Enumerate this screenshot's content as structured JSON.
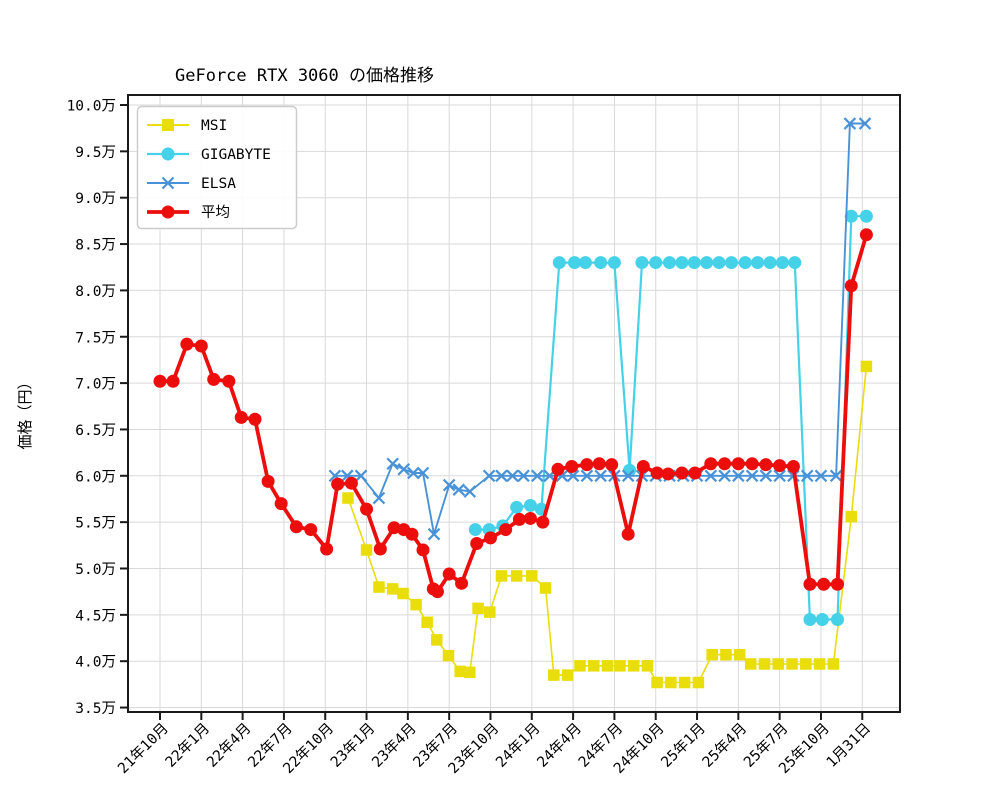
{
  "chart_data": {
    "type": "line",
    "title": "GeForce RTX 3060 の価格推移",
    "ylabel": "価格（円）",
    "unit_note": "万 = 10,000 yen",
    "grid": "on",
    "legend_position": "upper-left",
    "y_range": [
      3.5,
      10.0
    ],
    "y_ticks": [
      {
        "value": 10.0,
        "label": "10.0万"
      },
      {
        "value": 9.5,
        "label": "9.5万"
      },
      {
        "value": 9.0,
        "label": "9.0万"
      },
      {
        "value": 8.5,
        "label": "8.5万"
      },
      {
        "value": 8.0,
        "label": "8.0万"
      },
      {
        "value": 7.5,
        "label": "7.5万"
      },
      {
        "value": 7.0,
        "label": "7.0万"
      },
      {
        "value": 6.5,
        "label": "6.5万"
      },
      {
        "value": 6.0,
        "label": "6.0万"
      },
      {
        "value": 5.5,
        "label": "5.5万"
      },
      {
        "value": 5.0,
        "label": "5.0万"
      },
      {
        "value": 4.5,
        "label": "4.5万"
      },
      {
        "value": 4.0,
        "label": "4.0万"
      },
      {
        "value": 3.5,
        "label": "3.5万"
      }
    ],
    "x_axis_note": "x unit = months since 2021-10",
    "x_ticks": [
      {
        "m": 0,
        "label": "21年10月"
      },
      {
        "m": 3,
        "label": "22年1月"
      },
      {
        "m": 6,
        "label": "22年4月"
      },
      {
        "m": 9,
        "label": "22年7月"
      },
      {
        "m": 12,
        "label": "22年10月"
      },
      {
        "m": 15,
        "label": "23年1月"
      },
      {
        "m": 18,
        "label": "23年4月"
      },
      {
        "m": 21,
        "label": "23年7月"
      },
      {
        "m": 24,
        "label": "23年10月"
      },
      {
        "m": 27,
        "label": "24年1月"
      },
      {
        "m": 30,
        "label": "24年4月"
      },
      {
        "m": 33,
        "label": "24年7月"
      },
      {
        "m": 36,
        "label": "24年10月"
      },
      {
        "m": 39,
        "label": "25年1月"
      },
      {
        "m": 42,
        "label": "25年4月"
      },
      {
        "m": 45,
        "label": "25年7月"
      },
      {
        "m": 48,
        "label": "25年10月"
      },
      {
        "m": 51,
        "label": "1月31日"
      }
    ],
    "series": [
      {
        "name": "MSI",
        "color": "#e9dd0a",
        "marker": "square",
        "line_width": 1.6,
        "points": [
          [
            13.65,
            5.76
          ],
          [
            15.0,
            5.2
          ],
          [
            15.9,
            4.8
          ],
          [
            16.9,
            4.78
          ],
          [
            17.65,
            4.73
          ],
          [
            18.6,
            4.61
          ],
          [
            19.4,
            4.42
          ],
          [
            20.1,
            4.23
          ],
          [
            20.95,
            4.06
          ],
          [
            21.8,
            3.89
          ],
          [
            22.5,
            3.88
          ],
          [
            23.1,
            4.57
          ],
          [
            23.95,
            4.53
          ],
          [
            24.8,
            4.92
          ],
          [
            25.9,
            4.92
          ],
          [
            27.0,
            4.92
          ],
          [
            28.0,
            4.79
          ],
          [
            28.6,
            3.85
          ],
          [
            29.6,
            3.85
          ],
          [
            30.5,
            3.95
          ],
          [
            31.5,
            3.95
          ],
          [
            32.5,
            3.95
          ],
          [
            33.4,
            3.95
          ],
          [
            34.4,
            3.95
          ],
          [
            35.4,
            3.95
          ],
          [
            36.1,
            3.77
          ],
          [
            37.1,
            3.77
          ],
          [
            38.1,
            3.77
          ],
          [
            39.1,
            3.77
          ],
          [
            40.1,
            4.07
          ],
          [
            41.1,
            4.07
          ],
          [
            42.1,
            4.07
          ],
          [
            42.9,
            3.97
          ],
          [
            43.9,
            3.97
          ],
          [
            44.9,
            3.97
          ],
          [
            45.9,
            3.97
          ],
          [
            46.9,
            3.97
          ],
          [
            47.9,
            3.97
          ],
          [
            48.9,
            3.97
          ],
          [
            50.2,
            5.56
          ],
          [
            51.3,
            7.18
          ]
        ]
      },
      {
        "name": "GIGABYTE",
        "color": "#45d1e8",
        "marker": "circle",
        "line_width": 2.2,
        "points": [
          [
            22.9,
            5.42
          ],
          [
            23.9,
            5.42
          ],
          [
            24.9,
            5.46
          ],
          [
            25.9,
            5.66
          ],
          [
            26.9,
            5.68
          ],
          [
            27.7,
            5.64
          ],
          [
            29.0,
            8.3
          ],
          [
            30.1,
            8.3
          ],
          [
            30.9,
            8.3
          ],
          [
            32.0,
            8.3
          ],
          [
            33.0,
            8.3
          ],
          [
            34.1,
            6.06
          ],
          [
            35.0,
            8.3
          ],
          [
            36.0,
            8.3
          ],
          [
            37.0,
            8.3
          ],
          [
            37.9,
            8.3
          ],
          [
            38.8,
            8.3
          ],
          [
            39.7,
            8.3
          ],
          [
            40.6,
            8.3
          ],
          [
            41.5,
            8.3
          ],
          [
            42.5,
            8.3
          ],
          [
            43.4,
            8.3
          ],
          [
            44.3,
            8.3
          ],
          [
            45.2,
            8.3
          ],
          [
            46.1,
            8.3
          ],
          [
            47.2,
            4.45
          ],
          [
            48.1,
            4.45
          ],
          [
            49.2,
            4.45
          ],
          [
            50.2,
            8.8
          ],
          [
            51.3,
            8.8
          ]
        ]
      },
      {
        "name": "ELSA",
        "color": "#4a92d8",
        "marker": "x",
        "line_width": 1.9,
        "points": [
          [
            12.7,
            6.0
          ],
          [
            13.6,
            6.0
          ],
          [
            14.6,
            6.0
          ],
          [
            15.9,
            5.76
          ],
          [
            16.9,
            6.13
          ],
          [
            17.7,
            6.07
          ],
          [
            18.4,
            6.03
          ],
          [
            19.1,
            6.03
          ],
          [
            19.9,
            5.37
          ],
          [
            21.0,
            5.9
          ],
          [
            21.7,
            5.85
          ],
          [
            22.5,
            5.83
          ],
          [
            23.9,
            6.0
          ],
          [
            24.8,
            6.0
          ],
          [
            25.6,
            6.0
          ],
          [
            26.4,
            6.0
          ],
          [
            27.4,
            6.0
          ],
          [
            28.3,
            6.0
          ],
          [
            29.2,
            6.0
          ],
          [
            30,
            6.0
          ],
          [
            31,
            6.0
          ],
          [
            32,
            6.0
          ],
          [
            33,
            6.0
          ],
          [
            34,
            6.0
          ],
          [
            35,
            6.0
          ],
          [
            36,
            6.0
          ],
          [
            37,
            6.0
          ],
          [
            38,
            6.0
          ],
          [
            39,
            6.0
          ],
          [
            40,
            6.0
          ],
          [
            41,
            6.0
          ],
          [
            42,
            6.0
          ],
          [
            43,
            6.0
          ],
          [
            44,
            6.0
          ],
          [
            45,
            6.0
          ],
          [
            46,
            6.0
          ],
          [
            47,
            6.0
          ],
          [
            48,
            6.0
          ],
          [
            49.1,
            6.0
          ],
          [
            50.1,
            9.8
          ],
          [
            51.2,
            9.8
          ]
        ]
      },
      {
        "name": "平均",
        "color": "#ec0d0d",
        "marker": "circle",
        "line_width": 3.8,
        "points": [
          [
            0,
            7.02
          ],
          [
            0.95,
            7.02
          ],
          [
            1.95,
            7.42
          ],
          [
            3.0,
            7.4
          ],
          [
            3.9,
            7.04
          ],
          [
            5.0,
            7.02
          ],
          [
            5.9,
            6.63
          ],
          [
            6.9,
            6.61
          ],
          [
            7.85,
            5.94
          ],
          [
            8.8,
            5.7
          ],
          [
            9.9,
            5.45
          ],
          [
            10.95,
            5.42
          ],
          [
            12.1,
            5.21
          ],
          [
            12.9,
            5.91
          ],
          [
            13.9,
            5.92
          ],
          [
            15.0,
            5.64
          ],
          [
            16.0,
            5.21
          ],
          [
            17.0,
            5.44
          ],
          [
            17.7,
            5.42
          ],
          [
            18.3,
            5.37
          ],
          [
            19.1,
            5.2
          ],
          [
            19.85,
            4.78
          ],
          [
            20.15,
            4.75
          ],
          [
            21.0,
            4.94
          ],
          [
            21.9,
            4.84
          ],
          [
            23.0,
            5.27
          ],
          [
            24.0,
            5.33
          ],
          [
            25.1,
            5.42
          ],
          [
            26.1,
            5.53
          ],
          [
            26.9,
            5.54
          ],
          [
            27.8,
            5.5
          ],
          [
            28.9,
            6.07
          ],
          [
            29.9,
            6.1
          ],
          [
            31.0,
            6.12
          ],
          [
            31.9,
            6.13
          ],
          [
            32.8,
            6.12
          ],
          [
            34.0,
            5.37
          ],
          [
            35.1,
            6.1
          ],
          [
            36.1,
            6.03
          ],
          [
            36.9,
            6.02
          ],
          [
            37.9,
            6.03
          ],
          [
            38.85,
            6.03
          ],
          [
            40,
            6.13
          ],
          [
            41,
            6.13
          ],
          [
            42,
            6.13
          ],
          [
            43,
            6.13
          ],
          [
            44,
            6.12
          ],
          [
            45,
            6.11
          ],
          [
            46,
            6.1
          ],
          [
            47.2,
            4.83
          ],
          [
            48.2,
            4.83
          ],
          [
            49.2,
            4.83
          ],
          [
            50.2,
            8.05
          ],
          [
            51.3,
            8.6
          ]
        ]
      }
    ]
  },
  "legend": {
    "items": [
      "MSI",
      "GIGABYTE",
      "ELSA",
      "平均"
    ]
  },
  "colors": {
    "grid": "#d9d9d9",
    "frame": "#1a1a1a",
    "background": "#ffffff"
  }
}
